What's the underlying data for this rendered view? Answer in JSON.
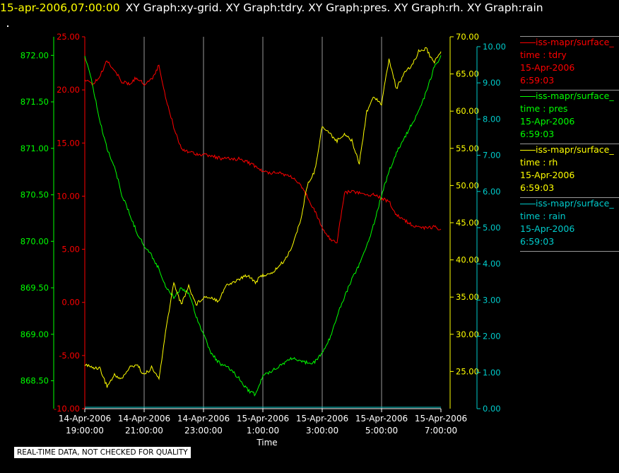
{
  "header": {
    "timestamp": "15-apr-2006,07:00:00",
    "graphs": "XY Graph:xy-grid.  XY Graph:tdry.  XY Graph:pres.  XY Graph:rh.  XY Graph:rain"
  },
  "disclaimer": "REAL-TIME DATA, NOT CHECKED FOR QUALITY",
  "colors": {
    "tdry": "#ff0000",
    "pres": "#00ff00",
    "rh": "#ffff00",
    "rain": "#00cccc",
    "grid": "#999999"
  },
  "legend": [
    {
      "key": "tdry",
      "source": "iss-mapr/surface_",
      "label": "time : tdry",
      "date": "15-Apr-2006",
      "time": "6:59:03"
    },
    {
      "key": "pres",
      "source": "iss-mapr/surface_",
      "label": "time : pres",
      "date": "15-Apr-2006",
      "time": "6:59:03"
    },
    {
      "key": "rh",
      "source": "iss-mapr/surface_",
      "label": "time : rh",
      "date": "15-Apr-2006",
      "time": "6:59:03"
    },
    {
      "key": "rain",
      "source": "iss-mapr/surface_",
      "label": "time : rain",
      "date": "15-Apr-2006",
      "time": "6:59:03"
    }
  ],
  "chart_data": {
    "type": "line",
    "xlabel": "Time",
    "x_ticks": [
      [
        "14-Apr-2006",
        "19:00:00"
      ],
      [
        "14-Apr-2006",
        "21:00:00"
      ],
      [
        "14-Apr-2006",
        "23:00:00"
      ],
      [
        "15-Apr-2006",
        "1:00:00"
      ],
      [
        "15-Apr-2006",
        "3:00:00"
      ],
      [
        "15-Apr-2006",
        "5:00:00"
      ],
      [
        "15-Apr-2006",
        "7:00:00"
      ]
    ],
    "x_hours_range": [
      19,
      31
    ],
    "grid": "vertical",
    "axes": {
      "tdry": {
        "range": [
          -10,
          25
        ],
        "ticks": [
          "-10.00",
          "-5.00",
          "0.00",
          "5.00",
          "10.00",
          "15.00",
          "20.00",
          "25.00"
        ]
      },
      "pres": {
        "range": [
          868.2,
          872.2
        ],
        "ticks": [
          "868.50",
          "869.00",
          "869.50",
          "870.00",
          "870.50",
          "871.00",
          "871.50",
          "872.00"
        ]
      },
      "rh": {
        "range": [
          20,
          70
        ],
        "ticks": [
          "25.00",
          "30.00",
          "35.00",
          "40.00",
          "45.00",
          "50.00",
          "55.00",
          "60.00",
          "65.00",
          "70.00"
        ]
      },
      "rain": {
        "range": [
          0,
          10
        ],
        "ticks": [
          "0.00",
          "1.00",
          "2.00",
          "3.00",
          "4.00",
          "5.00",
          "6.00",
          "7.00",
          "8.00",
          "9.00",
          "10.00"
        ]
      }
    },
    "series": [
      {
        "name": "time : tdry",
        "key": "tdry",
        "x": [
          19.0,
          19.25,
          19.5,
          19.75,
          20.0,
          20.25,
          20.5,
          20.75,
          21.0,
          21.25,
          21.5,
          21.75,
          22.0,
          22.25,
          22.5,
          22.75,
          23.0,
          23.25,
          23.5,
          23.75,
          24.0,
          24.25,
          24.5,
          24.75,
          25.0,
          25.25,
          25.5,
          25.75,
          26.0,
          26.25,
          26.5,
          26.75,
          27.0,
          27.25,
          27.5,
          27.75,
          28.0,
          28.25,
          28.5,
          28.75,
          29.0,
          29.25,
          29.5,
          29.75,
          30.0,
          30.25,
          30.5,
          30.75,
          31.0
        ],
        "y": [
          21.0,
          20.5,
          21.2,
          22.8,
          21.8,
          20.8,
          20.5,
          21.2,
          20.5,
          21.0,
          22.3,
          19.0,
          16.5,
          14.5,
          14.2,
          14.0,
          13.9,
          13.8,
          13.6,
          13.5,
          13.5,
          13.5,
          13.2,
          12.8,
          12.3,
          12.2,
          12.3,
          12.0,
          11.8,
          11.0,
          10.0,
          8.6,
          7.0,
          6.0,
          5.7,
          10.3,
          10.5,
          10.3,
          10.1,
          10.2,
          9.8,
          9.5,
          8.2,
          7.8,
          7.3,
          7.1,
          7.0,
          7.1,
          6.9
        ]
      },
      {
        "name": "time : pres",
        "key": "pres",
        "x": [
          19.0,
          19.25,
          19.5,
          19.75,
          20.0,
          20.25,
          20.5,
          20.75,
          21.0,
          21.25,
          21.5,
          21.75,
          22.0,
          22.25,
          22.5,
          22.75,
          23.0,
          23.25,
          23.5,
          23.75,
          24.0,
          24.25,
          24.5,
          24.75,
          25.0,
          25.25,
          25.5,
          25.75,
          26.0,
          26.25,
          26.5,
          26.75,
          27.0,
          27.25,
          27.5,
          27.75,
          28.0,
          28.25,
          28.5,
          28.75,
          29.0,
          29.25,
          29.5,
          29.75,
          30.0,
          30.25,
          30.5,
          30.75,
          31.0
        ],
        "y": [
          872.0,
          871.7,
          871.3,
          871.0,
          870.8,
          870.5,
          870.3,
          870.1,
          869.95,
          869.85,
          869.7,
          869.5,
          869.4,
          869.5,
          869.45,
          869.2,
          869.0,
          868.8,
          868.7,
          868.65,
          868.6,
          868.5,
          868.4,
          868.35,
          868.55,
          868.6,
          868.65,
          868.7,
          868.75,
          868.7,
          868.7,
          868.7,
          868.8,
          868.95,
          869.2,
          869.4,
          869.6,
          869.75,
          869.95,
          870.2,
          870.5,
          870.75,
          870.95,
          871.1,
          871.25,
          871.4,
          871.6,
          871.85,
          872.0
        ]
      },
      {
        "name": "time : rh",
        "key": "rh",
        "x": [
          19.0,
          19.25,
          19.5,
          19.75,
          20.0,
          20.25,
          20.5,
          20.75,
          21.0,
          21.25,
          21.5,
          21.75,
          22.0,
          22.25,
          22.5,
          22.75,
          23.0,
          23.25,
          23.5,
          23.75,
          24.0,
          24.25,
          24.5,
          24.75,
          25.0,
          25.25,
          25.5,
          25.75,
          26.0,
          26.25,
          26.5,
          26.75,
          27.0,
          27.25,
          27.5,
          27.75,
          28.0,
          28.25,
          28.5,
          28.75,
          29.0,
          29.25,
          29.5,
          29.75,
          30.0,
          30.25,
          30.5,
          30.75,
          31.0
        ],
        "y": [
          26.0,
          25.5,
          25.5,
          23.0,
          24.5,
          24.0,
          25.5,
          26.0,
          24.5,
          25.5,
          24.0,
          31.0,
          37.0,
          34.0,
          36.5,
          34.0,
          35.0,
          35.0,
          34.5,
          36.5,
          37.0,
          37.5,
          38.0,
          37.0,
          38.0,
          38.0,
          39.0,
          40.0,
          42.0,
          45.0,
          50.0,
          52.0,
          58.0,
          57.0,
          56.0,
          57.0,
          56.0,
          53.0,
          60.0,
          62.0,
          61.0,
          67.0,
          63.0,
          65.0,
          66.0,
          68.0,
          68.5,
          66.5,
          68.0
        ]
      },
      {
        "name": "time : rain",
        "key": "rain",
        "x": [
          19.0,
          31.0
        ],
        "y": [
          0.0,
          0.0
        ]
      }
    ]
  }
}
